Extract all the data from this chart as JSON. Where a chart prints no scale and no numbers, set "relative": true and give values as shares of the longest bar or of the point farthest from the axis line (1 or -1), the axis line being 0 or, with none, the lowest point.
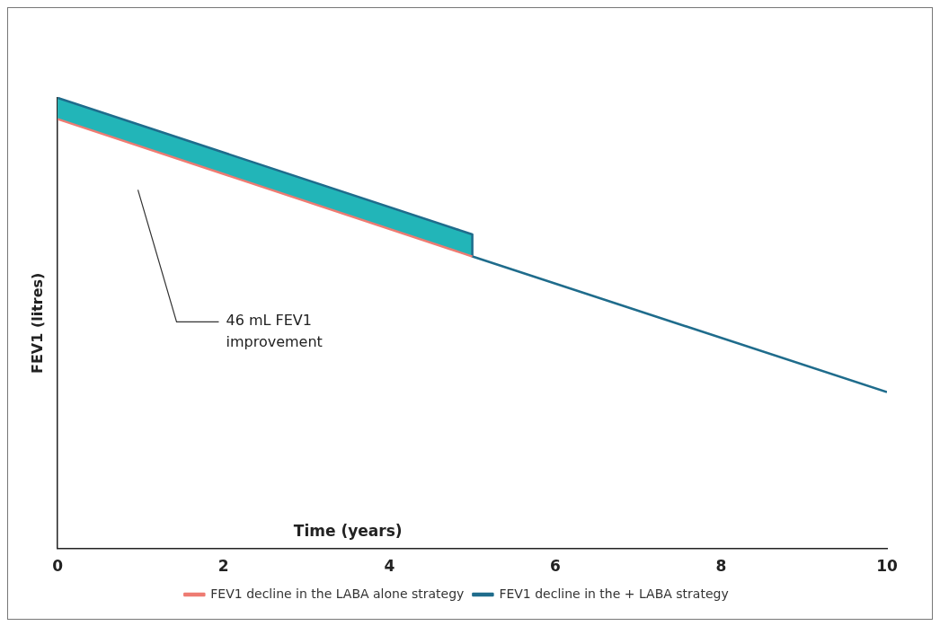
{
  "chart_data": {
    "type": "line",
    "relative": true,
    "xlabel": "Time (years)",
    "ylabel": "FEV1 (litres)",
    "xlim": [
      0,
      10
    ],
    "xticks": [
      0,
      2,
      4,
      6,
      8,
      10
    ],
    "series": [
      {
        "name": "FEV1 decline in the LABA alone strategy",
        "color": "#ee7b72",
        "x": [
          0,
          5
        ],
        "values": [
          0.953,
          0.648
        ]
      },
      {
        "name": "FEV1 decline in the + LABA strategy",
        "color": "#1f6c8c",
        "x": [
          0,
          5,
          5,
          10
        ],
        "values": [
          1,
          0.697,
          0.648,
          0.347
        ],
        "lower": [
          0.953,
          0.648,
          null,
          null
        ],
        "upper": [
          1,
          0.697,
          null,
          null
        ]
      }
    ],
    "annotations": [
      "46 mL FEV1 improvement"
    ],
    "legend": "bottom",
    "grid": false,
    "marker": "none",
    "line_style": "solid"
  }
}
